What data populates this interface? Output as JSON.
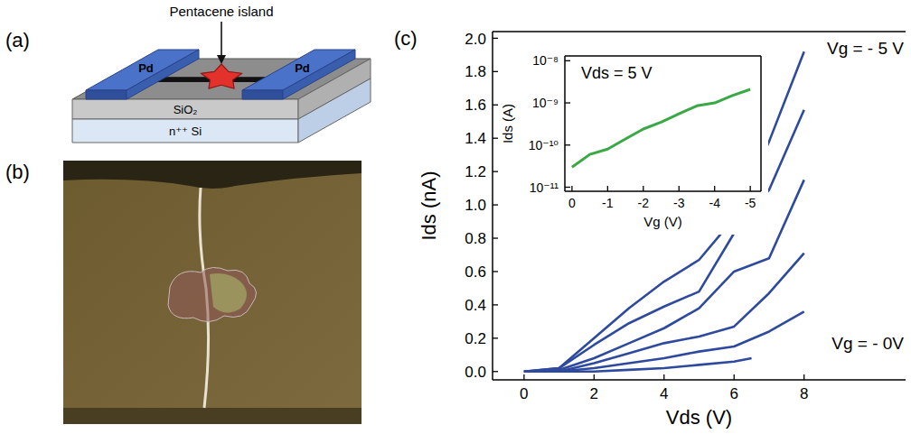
{
  "panels": {
    "a": "(a)",
    "b": "(b)",
    "c": "(c)"
  },
  "diagram": {
    "island_label": "Pentacene island",
    "electrodes": [
      "Pd",
      "Pd"
    ],
    "layers": [
      "SiO₂",
      "n⁺⁺ Si"
    ]
  },
  "chart_data": [
    {
      "type": "line",
      "x_label": "Vds (V)",
      "y_label": "Ids (nA)",
      "xlim": [
        -0.9,
        10.9
      ],
      "ylim": [
        -0.05,
        2.04
      ],
      "xticks": [
        0,
        2,
        4,
        6,
        8
      ],
      "yticks": [
        {
          "value": 0,
          "label": "0.0"
        },
        0.2,
        0.4,
        0.6,
        0.8,
        {
          "value": 1,
          "label": "1.0"
        },
        1.2,
        1.4,
        1.6,
        1.8,
        {
          "value": 2,
          "label": "2.0"
        }
      ],
      "annotations": [
        "Vg = - 5 V",
        "Vg = - 0V"
      ],
      "series": [
        {
          "color": "#2e4a9e",
          "x": [
            0,
            1,
            2,
            3,
            4,
            5,
            6,
            7,
            8
          ],
          "values": [
            0,
            0.02,
            0.2,
            0.38,
            0.54,
            0.67,
            0.92,
            1.38,
            1.92
          ]
        },
        {
          "color": "#2e4a9e",
          "x": [
            0,
            1,
            2,
            3,
            4,
            5,
            6,
            7,
            8
          ],
          "values": [
            0,
            0.02,
            0.16,
            0.29,
            0.39,
            0.48,
            0.83,
            1.09,
            1.57
          ]
        },
        {
          "color": "#2e4a9e",
          "x": [
            0,
            1,
            2,
            3,
            4,
            5,
            6,
            7,
            8
          ],
          "values": [
            0,
            0.01,
            0.08,
            0.17,
            0.26,
            0.38,
            0.6,
            0.68,
            1.15
          ]
        },
        {
          "color": "#2e4a9e",
          "x": [
            0,
            1,
            2,
            3,
            4,
            5,
            6,
            7,
            8
          ],
          "values": [
            0,
            0,
            0.05,
            0.11,
            0.17,
            0.21,
            0.27,
            0.47,
            0.71
          ]
        },
        {
          "color": "#2e4a9e",
          "x": [
            0,
            1,
            2,
            3,
            4,
            5,
            6,
            7,
            8
          ],
          "values": [
            0,
            0,
            0.02,
            0.05,
            0.08,
            0.12,
            0.15,
            0.24,
            0.36
          ]
        },
        {
          "color": "#2e4a9e",
          "x": [
            0,
            1,
            2,
            3,
            4,
            5,
            6,
            6.5
          ],
          "values": [
            0,
            0,
            0,
            0.01,
            0.02,
            0.04,
            0.06,
            0.08
          ]
        }
      ]
    },
    {
      "type": "line",
      "title": "Vds = 5 V",
      "x_label": "Vg (V)",
      "y_label": "Ids (A)",
      "log": "y",
      "xlim": [
        0.2,
        -5.3
      ],
      "ylim": [
        8e-12,
        1.3e-08
      ],
      "xticks": [
        0,
        -1,
        -2,
        -3,
        -4,
        -5
      ],
      "yticks": [
        {
          "value": 1e-11,
          "label": "10⁻¹¹"
        },
        {
          "value": 1e-10,
          "label": "10⁻¹⁰"
        },
        {
          "value": 1e-09,
          "label": "10⁻⁹"
        },
        {
          "value": 1e-08,
          "label": "10⁻⁸"
        }
      ],
      "series": [
        {
          "color": "#3aa845",
          "x": [
            0,
            -0.5,
            -1,
            -1.5,
            -2,
            -2.5,
            -3,
            -3.5,
            -4,
            -4.5,
            -5
          ],
          "values": [
            3e-11,
            6e-11,
            8e-11,
            1.4e-10,
            2.4e-10,
            3.5e-10,
            5.5e-10,
            8.5e-10,
            1e-09,
            1.5e-09,
            2.1e-09
          ]
        }
      ]
    }
  ]
}
